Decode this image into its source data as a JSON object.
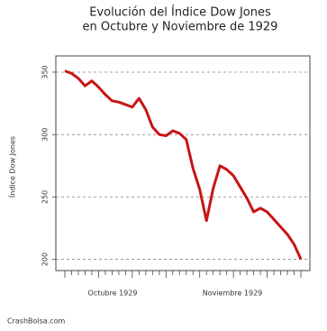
{
  "chart_data": {
    "type": "line",
    "title": "Evolución del Índice Dow Jones",
    "subtitle": "en Octubre y Noviembre de 1929",
    "y_label": "Índice Dow Jones",
    "x_group_labels": [
      "Octubre 1929",
      "Noviembre 1929"
    ],
    "source": "CrashBolsa.com",
    "categories": [
      null,
      null,
      null,
      null,
      null,
      null,
      null,
      null,
      null,
      null,
      null,
      null,
      null,
      null,
      null,
      null,
      null,
      null,
      null,
      null,
      null,
      null,
      null,
      null,
      null,
      null,
      null,
      null,
      null,
      null,
      null,
      null,
      null,
      null,
      null,
      null
    ],
    "series": [
      {
        "name": "Dow Jones",
        "color": "#c81414",
        "values": [
          351,
          349,
          345,
          339,
          343,
          338,
          332,
          327,
          326,
          324,
          322,
          329,
          320,
          306,
          300,
          299,
          303,
          301,
          296,
          273,
          256,
          231,
          257,
          275,
          272,
          267,
          258,
          249,
          238,
          241,
          238,
          232,
          226,
          220,
          212,
          200
        ]
      }
    ],
    "ylim": [
      191,
      363
    ],
    "yticks": [
      200,
      250,
      300,
      350
    ],
    "grid": true
  }
}
